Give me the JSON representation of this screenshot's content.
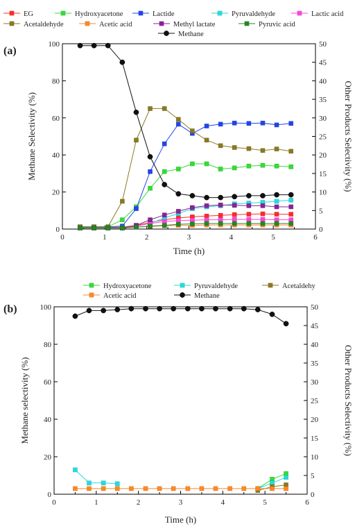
{
  "chart_data": [
    {
      "type": "line",
      "panel_label": "(a)",
      "xlabel": "Time (h)",
      "ylabel_left": "Methane Selectivity (%)",
      "ylabel_right": "Other Products Selectivity (%)",
      "xlim": [
        0,
        6
      ],
      "ylim_left": [
        0,
        100
      ],
      "ylim_right": [
        0,
        50
      ],
      "xticks": [
        0,
        1,
        2,
        3,
        4,
        5,
        6
      ],
      "yticks_left": [
        0,
        20,
        40,
        60,
        80,
        100
      ],
      "yticks_right": [
        0,
        5,
        10,
        15,
        20,
        25,
        30,
        35,
        40,
        45,
        50
      ],
      "legend_placement": "top",
      "grid": false,
      "x": [
        0.42,
        0.75,
        1.08,
        1.42,
        1.75,
        2.08,
        2.42,
        2.75,
        3.08,
        3.42,
        3.75,
        4.08,
        4.42,
        4.75,
        5.08,
        5.42
      ],
      "series": [
        {
          "name": "EG",
          "axis": "right",
          "color": "#ff2a2a",
          "marker": "square",
          "values": [
            0.5,
            0.5,
            0.5,
            0.5,
            1.0,
            1.8,
            2.5,
            3.0,
            3.3,
            3.5,
            3.7,
            3.9,
            4.0,
            4.1,
            4.0,
            4.0
          ]
        },
        {
          "name": "Hydroxyacetone",
          "axis": "right",
          "color": "#33dd33",
          "marker": "square",
          "values": [
            0.6,
            0.6,
            0.6,
            2.5,
            6.0,
            11.0,
            15.5,
            16.2,
            17.6,
            17.6,
            16.2,
            16.5,
            17.0,
            17.2,
            17.0,
            16.8
          ]
        },
        {
          "name": "Lactide",
          "axis": "right",
          "color": "#2244ee",
          "marker": "square",
          "values": [
            0.6,
            0.6,
            0.6,
            0.8,
            5.5,
            15.5,
            23.0,
            28.3,
            25.8,
            27.8,
            28.3,
            28.6,
            28.5,
            28.6,
            28.1,
            28.5
          ]
        },
        {
          "name": "Pyruvaldehyde",
          "axis": "right",
          "color": "#22dddd",
          "marker": "square",
          "values": [
            0.4,
            0.4,
            0.4,
            0.4,
            0.8,
            1.5,
            3.0,
            4.2,
            5.5,
            6.0,
            6.3,
            6.8,
            7.0,
            7.2,
            7.5,
            7.8
          ]
        },
        {
          "name": "Lactic acid",
          "axis": "right",
          "color": "#ff44dd",
          "marker": "square",
          "values": [
            0.3,
            0.3,
            0.3,
            0.3,
            0.8,
            1.5,
            2.0,
            2.3,
            2.4,
            2.5,
            2.5,
            2.6,
            2.6,
            2.6,
            2.5,
            2.5
          ]
        },
        {
          "name": "Acetaldehyde",
          "axis": "right",
          "color": "#8a7a20",
          "marker": "square",
          "values": [
            0.6,
            0.6,
            0.6,
            7.5,
            24.0,
            32.5,
            32.5,
            29.6,
            26.5,
            24.0,
            22.5,
            22.0,
            21.7,
            21.2,
            21.6,
            21.0
          ]
        },
        {
          "name": "Acetic acid",
          "axis": "right",
          "color": "#ff8822",
          "marker": "square",
          "values": [
            0.3,
            0.3,
            0.3,
            0.3,
            0.5,
            0.7,
            0.9,
            1.0,
            1.0,
            1.1,
            1.1,
            1.1,
            1.1,
            1.1,
            1.1,
            1.1
          ]
        },
        {
          "name": "Methyl lactate",
          "axis": "right",
          "color": "#882299",
          "marker": "square",
          "values": [
            0.3,
            0.3,
            0.3,
            0.3,
            1.0,
            2.5,
            3.8,
            4.8,
            5.8,
            6.3,
            6.5,
            6.4,
            6.3,
            6.3,
            6.0,
            6.0
          ]
        },
        {
          "name": "Pyruvic acid",
          "axis": "right",
          "color": "#228822",
          "marker": "square",
          "values": [
            0.3,
            0.3,
            0.3,
            0.3,
            0.5,
            0.8,
            1.0,
            1.3,
            1.4,
            1.5,
            1.5,
            1.5,
            1.5,
            1.5,
            1.5,
            1.5
          ]
        },
        {
          "name": "Methane",
          "axis": "left",
          "color": "#111111",
          "marker": "circle",
          "values": [
            99,
            99,
            99,
            90,
            63,
            39,
            24,
            19,
            18,
            17,
            17,
            17.5,
            18,
            18,
            18.5,
            18.5
          ]
        }
      ]
    },
    {
      "type": "line",
      "panel_label": "(b)",
      "xlabel": "Time (h)",
      "ylabel_left": "Methane selectivity (%)",
      "ylabel_right": "Other Products Selectivity (%)",
      "xlim": [
        0,
        6
      ],
      "ylim_left": [
        0,
        100
      ],
      "ylim_right": [
        0,
        50
      ],
      "xticks": [
        0,
        1,
        2,
        3,
        4,
        5,
        6
      ],
      "yticks_left": [
        0,
        20,
        40,
        60,
        80,
        100
      ],
      "yticks_right": [
        0,
        5,
        10,
        15,
        20,
        25,
        30,
        35,
        40,
        45,
        50
      ],
      "legend_placement": "top",
      "grid": false,
      "x": [
        0.5,
        0.83,
        1.17,
        1.5,
        1.83,
        2.17,
        2.5,
        2.83,
        3.17,
        3.5,
        3.83,
        4.17,
        4.5,
        4.83,
        5.17,
        5.5
      ],
      "series": [
        {
          "name": "Hydroxyacetone",
          "axis": "right",
          "color": "#33dd33",
          "marker": "square",
          "values": [
            null,
            null,
            null,
            null,
            null,
            null,
            null,
            null,
            null,
            null,
            null,
            null,
            null,
            1.5,
            4.0,
            5.5
          ]
        },
        {
          "name": "Pyruvaldehyde",
          "axis": "right",
          "color": "#22dddd",
          "marker": "square",
          "values": [
            6.5,
            3.0,
            3.0,
            2.8,
            null,
            null,
            null,
            null,
            null,
            null,
            null,
            null,
            null,
            1.5,
            3.0,
            4.5
          ]
        },
        {
          "name": "Acetaldehy",
          "axis": "right",
          "color": "#8a7a20",
          "marker": "square",
          "values": [
            null,
            null,
            null,
            null,
            null,
            null,
            null,
            null,
            null,
            null,
            null,
            null,
            null,
            1.0,
            2.0,
            2.5
          ]
        },
        {
          "name": "Acetic acid",
          "axis": "right",
          "color": "#ff8822",
          "marker": "square",
          "values": [
            1.5,
            1.5,
            1.5,
            1.5,
            1.5,
            1.5,
            1.5,
            1.5,
            1.5,
            1.5,
            1.5,
            1.5,
            1.5,
            1.5,
            1.5,
            1.5
          ]
        },
        {
          "name": "Methane",
          "axis": "left",
          "color": "#111111",
          "marker": "circle",
          "values": [
            95,
            98,
            98,
            98.5,
            99,
            99,
            99,
            99,
            99,
            99,
            99,
            99,
            99,
            98.5,
            96,
            91
          ]
        }
      ]
    }
  ]
}
